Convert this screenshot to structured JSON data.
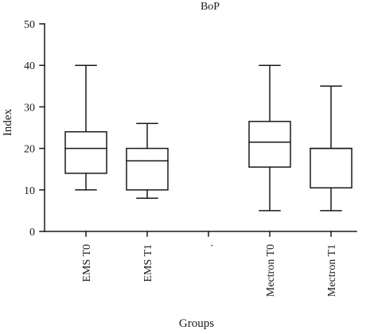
{
  "chart_data": {
    "type": "box",
    "title": "BoP",
    "xlabel": "Groups",
    "ylabel": "Index",
    "ylim": [
      0,
      50
    ],
    "yticks": [
      0,
      10,
      20,
      30,
      40,
      50
    ],
    "grid": false,
    "categories": [
      "EMS T0",
      "EMS T1",
      ".",
      "Mectron T0",
      "Mectron T1"
    ],
    "boxes": [
      {
        "category": "EMS T0",
        "min": 10,
        "q1": 14,
        "median": 20,
        "q3": 24,
        "max": 40
      },
      {
        "category": "EMS T1",
        "min": 8,
        "q1": 10,
        "median": 17,
        "q3": 20,
        "max": 26
      },
      {
        "category": ".",
        "empty": true
      },
      {
        "category": "Mectron T0",
        "min": 5,
        "q1": 15.5,
        "median": 21.5,
        "q3": 26.5,
        "max": 40
      },
      {
        "category": "Mectron T1",
        "min": 5,
        "q1": 10.5,
        "median": 20,
        "q3": 20,
        "max": 35
      }
    ],
    "colors": {
      "stroke": "#1a1a1a",
      "background": "#ffffff"
    }
  }
}
